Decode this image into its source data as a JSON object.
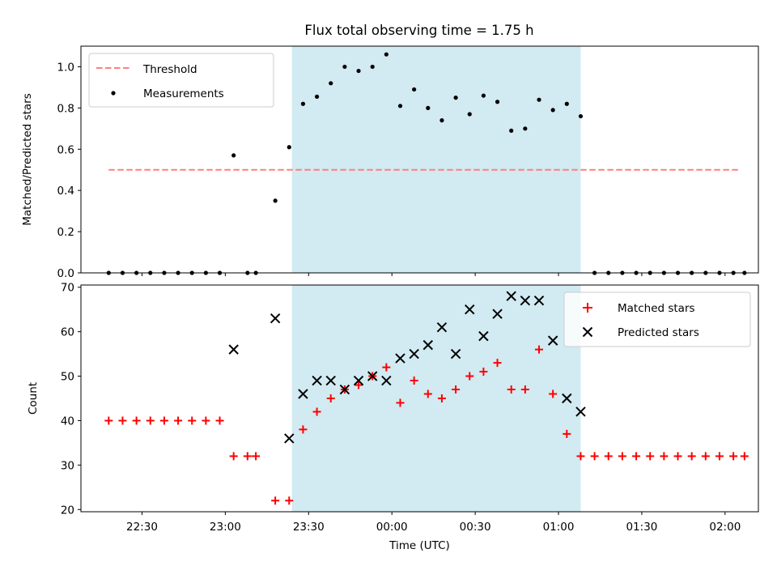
{
  "title": "Flux total observing time = 1.75 h",
  "colors": {
    "shade": "#add8e6",
    "threshold": "#ff7f7f",
    "matched": "#ff0000",
    "predicted": "#000000",
    "measurement": "#000000"
  },
  "chart_data": [
    {
      "type": "scatter",
      "ylabel": "Matched/Predicted stars",
      "xlabel": "",
      "ylim": [
        0,
        1.1
      ],
      "yticks": [
        "0.0",
        "0.2",
        "0.4",
        "0.6",
        "0.8",
        "1.0"
      ],
      "x_range": [
        "22:08",
        "02:12"
      ],
      "shaded_interval": [
        "23:24",
        "01:08"
      ],
      "legend_position": "top-left",
      "threshold": {
        "name": "Threshold",
        "y": 0.5,
        "x": [
          "22:18",
          "02:05"
        ]
      },
      "series": [
        {
          "name": "Measurements",
          "points": [
            [
              "22:18",
              0.0
            ],
            [
              "22:23",
              0.0
            ],
            [
              "22:28",
              0.0
            ],
            [
              "22:33",
              0.0
            ],
            [
              "22:38",
              0.0
            ],
            [
              "22:43",
              0.0
            ],
            [
              "22:48",
              0.0
            ],
            [
              "22:53",
              0.0
            ],
            [
              "22:58",
              0.0
            ],
            [
              "23:03",
              0.57
            ],
            [
              "23:08",
              0.0
            ],
            [
              "23:11",
              0.0
            ],
            [
              "23:18",
              0.35
            ],
            [
              "23:23",
              0.61
            ],
            [
              "23:28",
              0.82
            ],
            [
              "23:33",
              0.855
            ],
            [
              "23:38",
              0.92
            ],
            [
              "23:43",
              1.0
            ],
            [
              "23:48",
              0.98
            ],
            [
              "23:53",
              1.0
            ],
            [
              "23:58",
              1.06
            ],
            [
              "00:03",
              0.81
            ],
            [
              "00:08",
              0.89
            ],
            [
              "00:13",
              0.8
            ],
            [
              "00:18",
              0.74
            ],
            [
              "00:23",
              0.85
            ],
            [
              "00:28",
              0.77
            ],
            [
              "00:33",
              0.86
            ],
            [
              "00:38",
              0.83
            ],
            [
              "00:43",
              0.69
            ],
            [
              "00:48",
              0.7
            ],
            [
              "00:53",
              0.84
            ],
            [
              "00:58",
              0.79
            ],
            [
              "01:03",
              0.82
            ],
            [
              "01:08",
              0.76
            ],
            [
              "01:13",
              0.0
            ],
            [
              "01:18",
              0.0
            ],
            [
              "01:23",
              0.0
            ],
            [
              "01:28",
              0.0
            ],
            [
              "01:33",
              0.0
            ],
            [
              "01:38",
              0.0
            ],
            [
              "01:43",
              0.0
            ],
            [
              "01:48",
              0.0
            ],
            [
              "01:53",
              0.0
            ],
            [
              "01:58",
              0.0
            ],
            [
              "02:03",
              0.0
            ],
            [
              "02:07",
              0.0
            ]
          ]
        }
      ]
    },
    {
      "type": "scatter",
      "ylabel": "Count",
      "xlabel": "Time (UTC)",
      "ylim": [
        19.5,
        70.5
      ],
      "yticks": [
        "20",
        "30",
        "40",
        "50",
        "60",
        "70"
      ],
      "xticks": [
        "22:30",
        "23:00",
        "23:30",
        "00:00",
        "00:30",
        "01:00",
        "01:30",
        "02:00"
      ],
      "x_range": [
        "22:08",
        "02:12"
      ],
      "shaded_interval": [
        "23:24",
        "01:08"
      ],
      "legend_position": "top-right",
      "series": [
        {
          "name": "Matched stars",
          "marker": "+",
          "points": [
            [
              "22:18",
              40
            ],
            [
              "22:23",
              40
            ],
            [
              "22:28",
              40
            ],
            [
              "22:33",
              40
            ],
            [
              "22:38",
              40
            ],
            [
              "22:43",
              40
            ],
            [
              "22:48",
              40
            ],
            [
              "22:53",
              40
            ],
            [
              "22:58",
              40
            ],
            [
              "23:03",
              32
            ],
            [
              "23:08",
              32
            ],
            [
              "23:11",
              32
            ],
            [
              "23:18",
              22
            ],
            [
              "23:23",
              22
            ],
            [
              "23:28",
              38
            ],
            [
              "23:33",
              42
            ],
            [
              "23:38",
              45
            ],
            [
              "23:43",
              47
            ],
            [
              "23:48",
              48
            ],
            [
              "23:53",
              50
            ],
            [
              "23:58",
              52
            ],
            [
              "00:03",
              44
            ],
            [
              "00:08",
              49
            ],
            [
              "00:13",
              46
            ],
            [
              "00:18",
              45
            ],
            [
              "00:23",
              47
            ],
            [
              "00:28",
              50
            ],
            [
              "00:33",
              51
            ],
            [
              "00:38",
              53
            ],
            [
              "00:43",
              47
            ],
            [
              "00:48",
              47
            ],
            [
              "00:53",
              56
            ],
            [
              "00:58",
              46
            ],
            [
              "01:03",
              37
            ],
            [
              "01:08",
              32
            ],
            [
              "01:13",
              32
            ],
            [
              "01:18",
              32
            ],
            [
              "01:23",
              32
            ],
            [
              "01:28",
              32
            ],
            [
              "01:33",
              32
            ],
            [
              "01:38",
              32
            ],
            [
              "01:43",
              32
            ],
            [
              "01:48",
              32
            ],
            [
              "01:53",
              32
            ],
            [
              "01:58",
              32
            ],
            [
              "02:03",
              32
            ],
            [
              "02:07",
              32
            ]
          ]
        },
        {
          "name": "Predicted stars",
          "marker": "x",
          "points": [
            [
              "23:03",
              56
            ],
            [
              "23:18",
              63
            ],
            [
              "23:23",
              36
            ],
            [
              "23:28",
              46
            ],
            [
              "23:33",
              49
            ],
            [
              "23:38",
              49
            ],
            [
              "23:43",
              47
            ],
            [
              "23:48",
              49
            ],
            [
              "23:53",
              50
            ],
            [
              "23:58",
              49
            ],
            [
              "00:03",
              54
            ],
            [
              "00:08",
              55
            ],
            [
              "00:13",
              57
            ],
            [
              "00:18",
              61
            ],
            [
              "00:23",
              55
            ],
            [
              "00:28",
              65
            ],
            [
              "00:33",
              59
            ],
            [
              "00:38",
              64
            ],
            [
              "00:43",
              68
            ],
            [
              "00:48",
              67
            ],
            [
              "00:53",
              67
            ],
            [
              "00:58",
              58
            ],
            [
              "01:03",
              45
            ],
            [
              "01:08",
              42
            ]
          ]
        }
      ]
    }
  ]
}
